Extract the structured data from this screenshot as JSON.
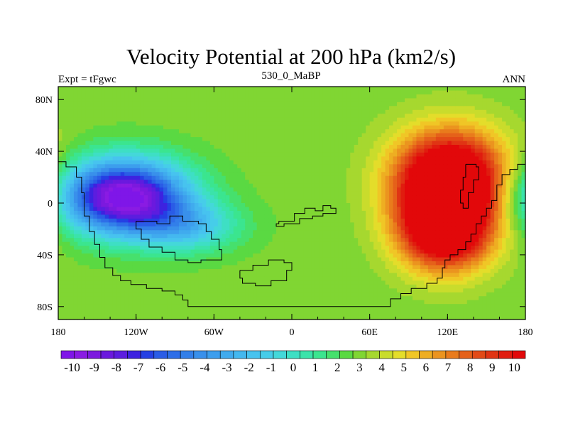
{
  "chart_data": {
    "type": "heatmap",
    "title": "Velocity Potential at 200 hPa (km2/s)",
    "left_string": "Expt = tFgwc",
    "center_string": "530_0_MaBP",
    "right_string": "ANN",
    "x_range": [
      -180,
      180
    ],
    "y_range": [
      -90,
      90
    ],
    "x_ticks": [
      {
        "value": -180,
        "label": "180"
      },
      {
        "value": -120,
        "label": "120W"
      },
      {
        "value": -60,
        "label": "60W"
      },
      {
        "value": 0,
        "label": "0"
      },
      {
        "value": 60,
        "label": "60E"
      },
      {
        "value": 120,
        "label": "120E"
      },
      {
        "value": 180,
        "label": "180"
      }
    ],
    "y_ticks": [
      {
        "value": 80,
        "label": "80N"
      },
      {
        "value": 40,
        "label": "40N"
      },
      {
        "value": 0,
        "label": "0"
      },
      {
        "value": -40,
        "label": "40S"
      },
      {
        "value": -80,
        "label": "80S"
      }
    ],
    "colorbar": {
      "min": -10.5,
      "max": 10.5,
      "step": 0.5,
      "labels": [
        "-10",
        "-9",
        "-8",
        "-7",
        "-6",
        "-5",
        "-4",
        "-3",
        "-2",
        "-1",
        "0",
        "1",
        "2",
        "3",
        "4",
        "5",
        "6",
        "7",
        "8",
        "9",
        "10"
      ],
      "colors": [
        "#7f16e8",
        "#8a1be3",
        "#7c19de",
        "#6b19de",
        "#5c1ddf",
        "#3d22e0",
        "#2540e4",
        "#2a5ce6",
        "#2e6ee8",
        "#327fe9",
        "#3990eb",
        "#3d9eed",
        "#40abee",
        "#44b8ef",
        "#47c3ef",
        "#46cde9",
        "#44d8d9",
        "#3edfc4",
        "#3be3aa",
        "#3be58f",
        "#46e06d",
        "#5ad942",
        "#80d633",
        "#a6d82f",
        "#c9dc2c",
        "#e4dd2a",
        "#f0c626",
        "#eeae22",
        "#eb941f",
        "#e97b1c",
        "#e5611a",
        "#e24a17",
        "#e03414",
        "#e01c0f",
        "#e2080a"
      ]
    },
    "field": {
      "background": 0.7,
      "features": [
        {
          "name": "pacific-low",
          "lon": -130,
          "lat": 5,
          "amp": -11.3,
          "sx": 34,
          "sy": 20
        },
        {
          "name": "atlantic-low",
          "lon": -80,
          "lat": -18,
          "amp": -3.5,
          "sx": 28,
          "sy": 14
        },
        {
          "name": "indo-high-north",
          "lon": 122,
          "lat": 18,
          "amp": 9.6,
          "sx": 30,
          "sy": 26
        },
        {
          "name": "indo-high-south",
          "lon": 118,
          "lat": -22,
          "amp": 7.6,
          "sx": 25,
          "sy": 22
        }
      ]
    }
  }
}
